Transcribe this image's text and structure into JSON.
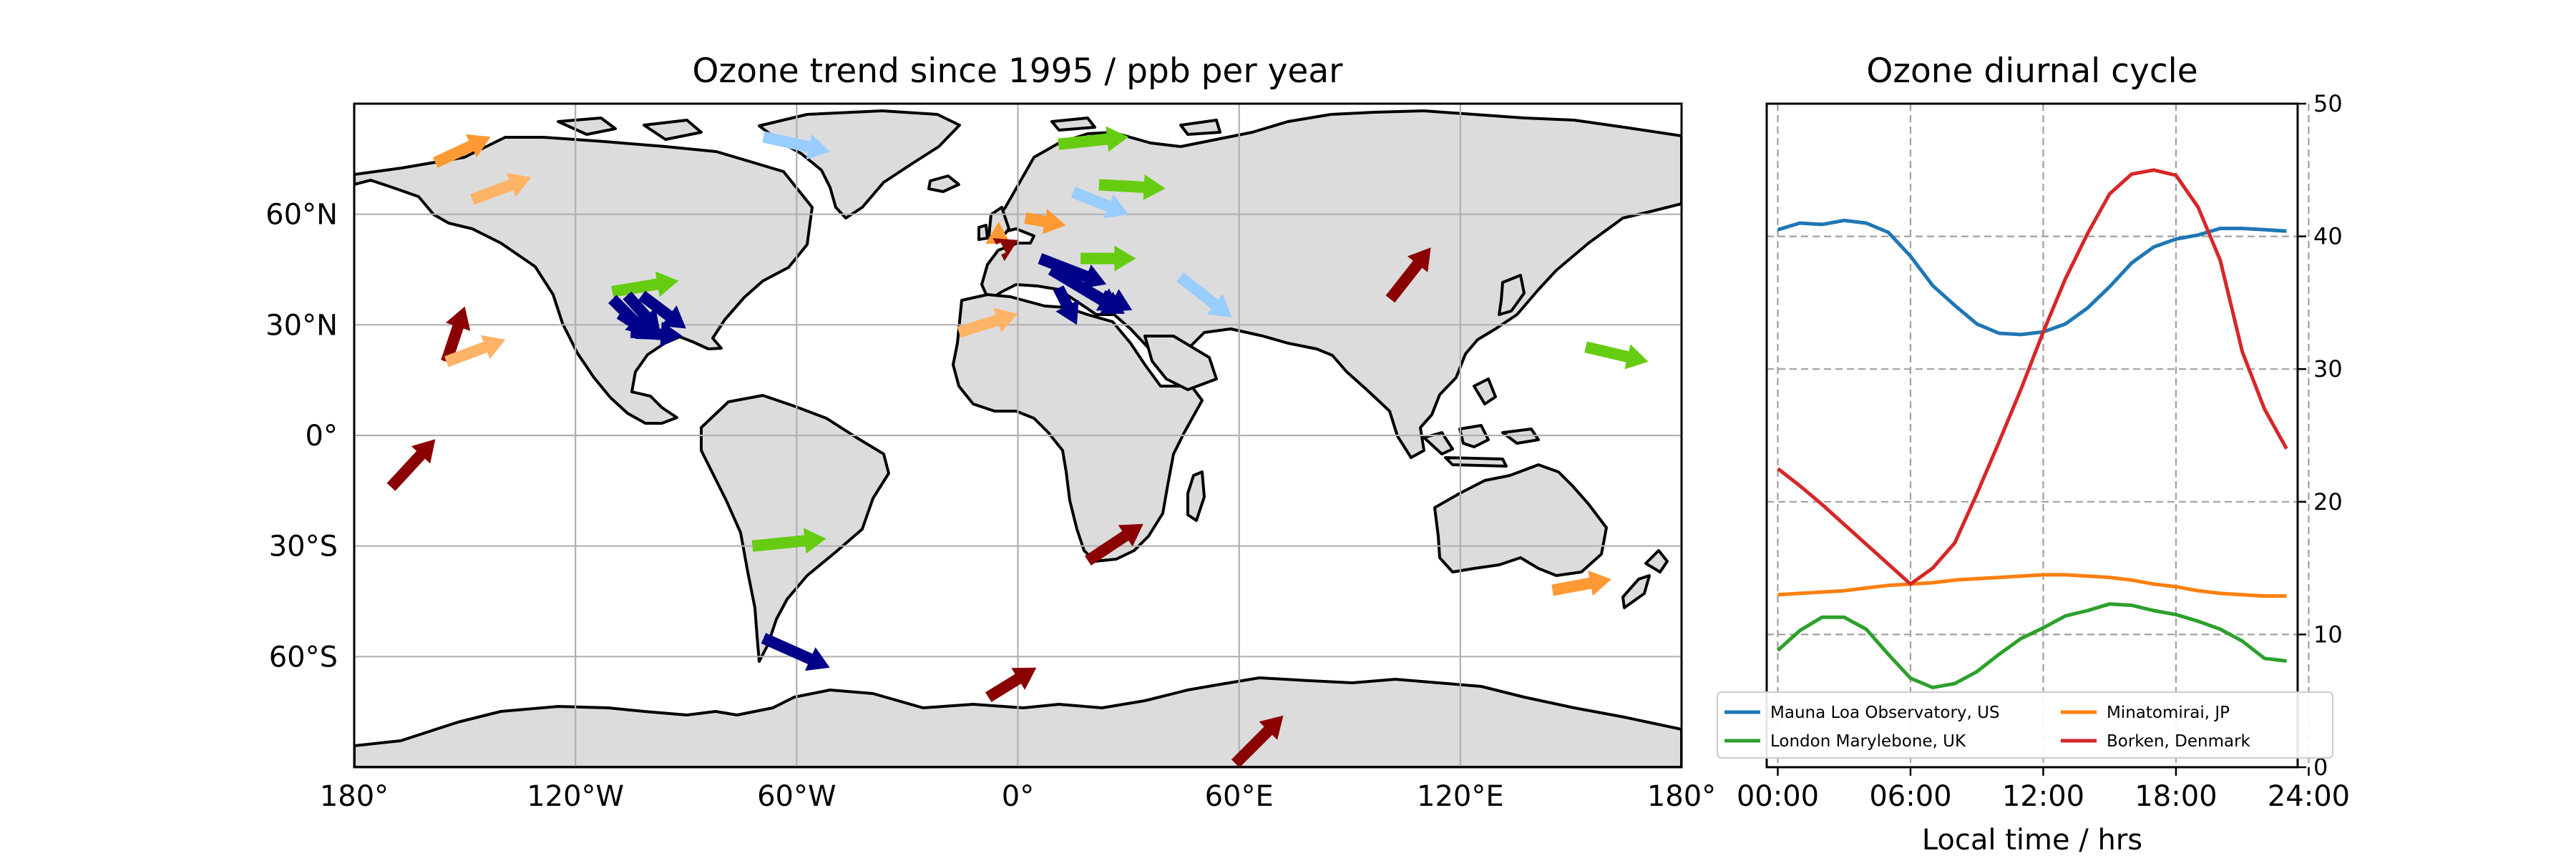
{
  "chart_data": [
    {
      "type": "map",
      "title": "Ozone trend since 1995 / ppb per year",
      "xlim": [
        -180,
        180
      ],
      "ylim": [
        -90,
        90
      ],
      "grid": true,
      "lon_ticks": [
        {
          "v": -180,
          "label": "180°"
        },
        {
          "v": -120,
          "label": "120°W"
        },
        {
          "v": -60,
          "label": "60°W"
        },
        {
          "v": 0,
          "label": "0°"
        },
        {
          "v": 60,
          "label": "60°E"
        },
        {
          "v": 120,
          "label": "120°E"
        },
        {
          "v": 180,
          "label": "180°"
        }
      ],
      "lat_ticks": [
        {
          "v": 60,
          "label": "60°N"
        },
        {
          "v": 30,
          "label": "30°N"
        },
        {
          "v": 0,
          "label": "0°"
        },
        {
          "v": -30,
          "label": "30°S"
        },
        {
          "v": -60,
          "label": "60°S"
        }
      ],
      "colors": {
        "land": "#dcdcdc",
        "coast": "#000000",
        "dark_red": "#8b0000",
        "orange": "#ff9933",
        "light_orange": "#ffb366",
        "green": "#66cc11",
        "light_blue": "#99ccff",
        "navy": "#000088"
      },
      "arrows": [
        {
          "lon": -158,
          "lat": 74,
          "dlon": 15,
          "dlat": 7,
          "color": "orange"
        },
        {
          "lon": -148,
          "lat": 64,
          "dlon": 16,
          "dlat": 6,
          "color": "light_orange"
        },
        {
          "lon": -155,
          "lat": 20,
          "dlon": 5,
          "dlat": 15,
          "color": "dark_red"
        },
        {
          "lon": -155,
          "lat": 20,
          "dlon": 16,
          "dlat": 6,
          "color": "light_orange"
        },
        {
          "lon": -170,
          "lat": -14,
          "dlon": 12,
          "dlat": 13,
          "color": "dark_red"
        },
        {
          "lon": -110,
          "lat": 39,
          "dlon": 18,
          "dlat": 3,
          "color": "green"
        },
        {
          "lon": -110,
          "lat": 37,
          "dlon": 10,
          "dlat": -10,
          "color": "navy"
        },
        {
          "lon": -106,
          "lat": 38,
          "dlon": 9,
          "dlat": -10,
          "color": "navy"
        },
        {
          "lon": -102,
          "lat": 38,
          "dlon": 12,
          "dlat": -9,
          "color": "navy"
        },
        {
          "lon": -108,
          "lat": 33,
          "dlon": 11,
          "dlat": -7,
          "color": "navy"
        },
        {
          "lon": -105,
          "lat": 28,
          "dlon": 14,
          "dlat": -1,
          "color": "navy"
        },
        {
          "lon": -69,
          "lat": 81,
          "dlon": 18,
          "dlat": -4,
          "color": "light_blue"
        },
        {
          "lon": 11,
          "lat": 79,
          "dlon": 19,
          "dlat": 2,
          "color": "green"
        },
        {
          "lon": 22,
          "lat": 68,
          "dlon": 18,
          "dlat": -1,
          "color": "green"
        },
        {
          "lon": 15,
          "lat": 66,
          "dlon": 15,
          "dlat": -6,
          "color": "light_blue"
        },
        {
          "lon": 2,
          "lat": 59,
          "dlon": 11,
          "dlat": -2,
          "color": "orange"
        },
        {
          "lon": -7,
          "lat": 55,
          "dlon": 5,
          "dlat": -3,
          "color": "orange"
        },
        {
          "lon": -4,
          "lat": 51,
          "dlon": 4,
          "dlat": 2,
          "color": "dark_red"
        },
        {
          "lon": 17,
          "lat": 48,
          "dlon": 15,
          "dlat": 0,
          "color": "green"
        },
        {
          "lon": 6,
          "lat": 48,
          "dlon": 18,
          "dlat": -7,
          "color": "navy"
        },
        {
          "lon": 9,
          "lat": 45,
          "dlon": 20,
          "dlat": -12,
          "color": "navy"
        },
        {
          "lon": 14,
          "lat": 42,
          "dlon": 14,
          "dlat": -8,
          "color": "navy"
        },
        {
          "lon": 11,
          "lat": 40,
          "dlon": 5,
          "dlat": -10,
          "color": "navy"
        },
        {
          "lon": 23,
          "lat": 38,
          "dlon": 8,
          "dlat": -4,
          "color": "navy"
        },
        {
          "lon": 44,
          "lat": 43,
          "dlon": 14,
          "dlat": -11,
          "color": "light_blue"
        },
        {
          "lon": -16,
          "lat": 28,
          "dlon": 16,
          "dlat": 5,
          "color": "light_orange"
        },
        {
          "lon": 101,
          "lat": 37,
          "dlon": 11,
          "dlat": 14,
          "color": "dark_red"
        },
        {
          "lon": 154,
          "lat": 24,
          "dlon": 17,
          "dlat": -4,
          "color": "green"
        },
        {
          "lon": -72,
          "lat": -30,
          "dlon": 20,
          "dlat": 2,
          "color": "green"
        },
        {
          "lon": 19,
          "lat": -34,
          "dlon": 15,
          "dlat": 10,
          "color": "dark_red"
        },
        {
          "lon": 145,
          "lat": -42,
          "dlon": 16,
          "dlat": 3,
          "color": "orange"
        },
        {
          "lon": -69,
          "lat": -55,
          "dlon": 18,
          "dlat": -8,
          "color": "navy"
        },
        {
          "lon": -8,
          "lat": -71,
          "dlon": 13,
          "dlat": 8,
          "color": "dark_red"
        },
        {
          "lon": 59,
          "lat": -89,
          "dlon": 13,
          "dlat": 13,
          "color": "dark_red"
        }
      ]
    },
    {
      "type": "line",
      "title": "Ozone diurnal cycle",
      "xlabel": "Local time / hrs",
      "ylabel": "",
      "xlim": [
        -0.5,
        23.5
      ],
      "ylim": [
        0,
        50
      ],
      "yaxis_side": "right",
      "grid": "dashed",
      "xticks": [
        {
          "v": 0,
          "label": "00:00"
        },
        {
          "v": 6,
          "label": "06:00"
        },
        {
          "v": 12,
          "label": "12:00"
        },
        {
          "v": 18,
          "label": "18:00"
        },
        {
          "v": 24,
          "label": "24:00"
        }
      ],
      "yticks": [
        0,
        10,
        20,
        30,
        40,
        50
      ],
      "legend": "lower-center, 2 columns",
      "x": [
        0,
        1,
        2,
        3,
        4,
        5,
        6,
        7,
        8,
        9,
        10,
        11,
        12,
        13,
        14,
        15,
        16,
        17,
        18,
        19,
        20,
        21,
        22,
        23
      ],
      "series": [
        {
          "name": "Mauna Loa Observatory, US",
          "color": "#1f77b4",
          "values": [
            40.5,
            41.0,
            40.9,
            41.2,
            41.0,
            40.3,
            38.5,
            36.3,
            34.8,
            33.4,
            32.7,
            32.6,
            32.8,
            33.4,
            34.6,
            36.2,
            38.0,
            39.2,
            39.8,
            40.1,
            40.6,
            40.6,
            40.5,
            40.4
          ]
        },
        {
          "name": "Minatomirai, JP",
          "color": "#ff7f0e",
          "values": [
            13.0,
            13.1,
            13.2,
            13.3,
            13.5,
            13.7,
            13.8,
            13.9,
            14.1,
            14.2,
            14.3,
            14.4,
            14.5,
            14.5,
            14.4,
            14.3,
            14.1,
            13.8,
            13.6,
            13.3,
            13.1,
            13.0,
            12.9,
            12.9
          ]
        },
        {
          "name": "London Marylebone, UK",
          "color": "#2ca02c",
          "values": [
            8.8,
            10.3,
            11.3,
            11.3,
            10.4,
            8.5,
            6.7,
            6.0,
            6.3,
            7.2,
            8.5,
            9.7,
            10.5,
            11.4,
            11.8,
            12.3,
            12.2,
            11.8,
            11.5,
            11.0,
            10.4,
            9.5,
            8.2,
            8.0
          ]
        },
        {
          "name": "Borken, Denmark",
          "color": "#d62728",
          "values": [
            22.5,
            21.2,
            19.8,
            18.3,
            16.8,
            15.3,
            13.8,
            15.0,
            16.9,
            20.6,
            24.5,
            28.5,
            32.8,
            36.8,
            40.2,
            43.2,
            44.7,
            45.0,
            44.6,
            42.2,
            38.2,
            31.3,
            27.0,
            24.0
          ]
        }
      ]
    }
  ]
}
